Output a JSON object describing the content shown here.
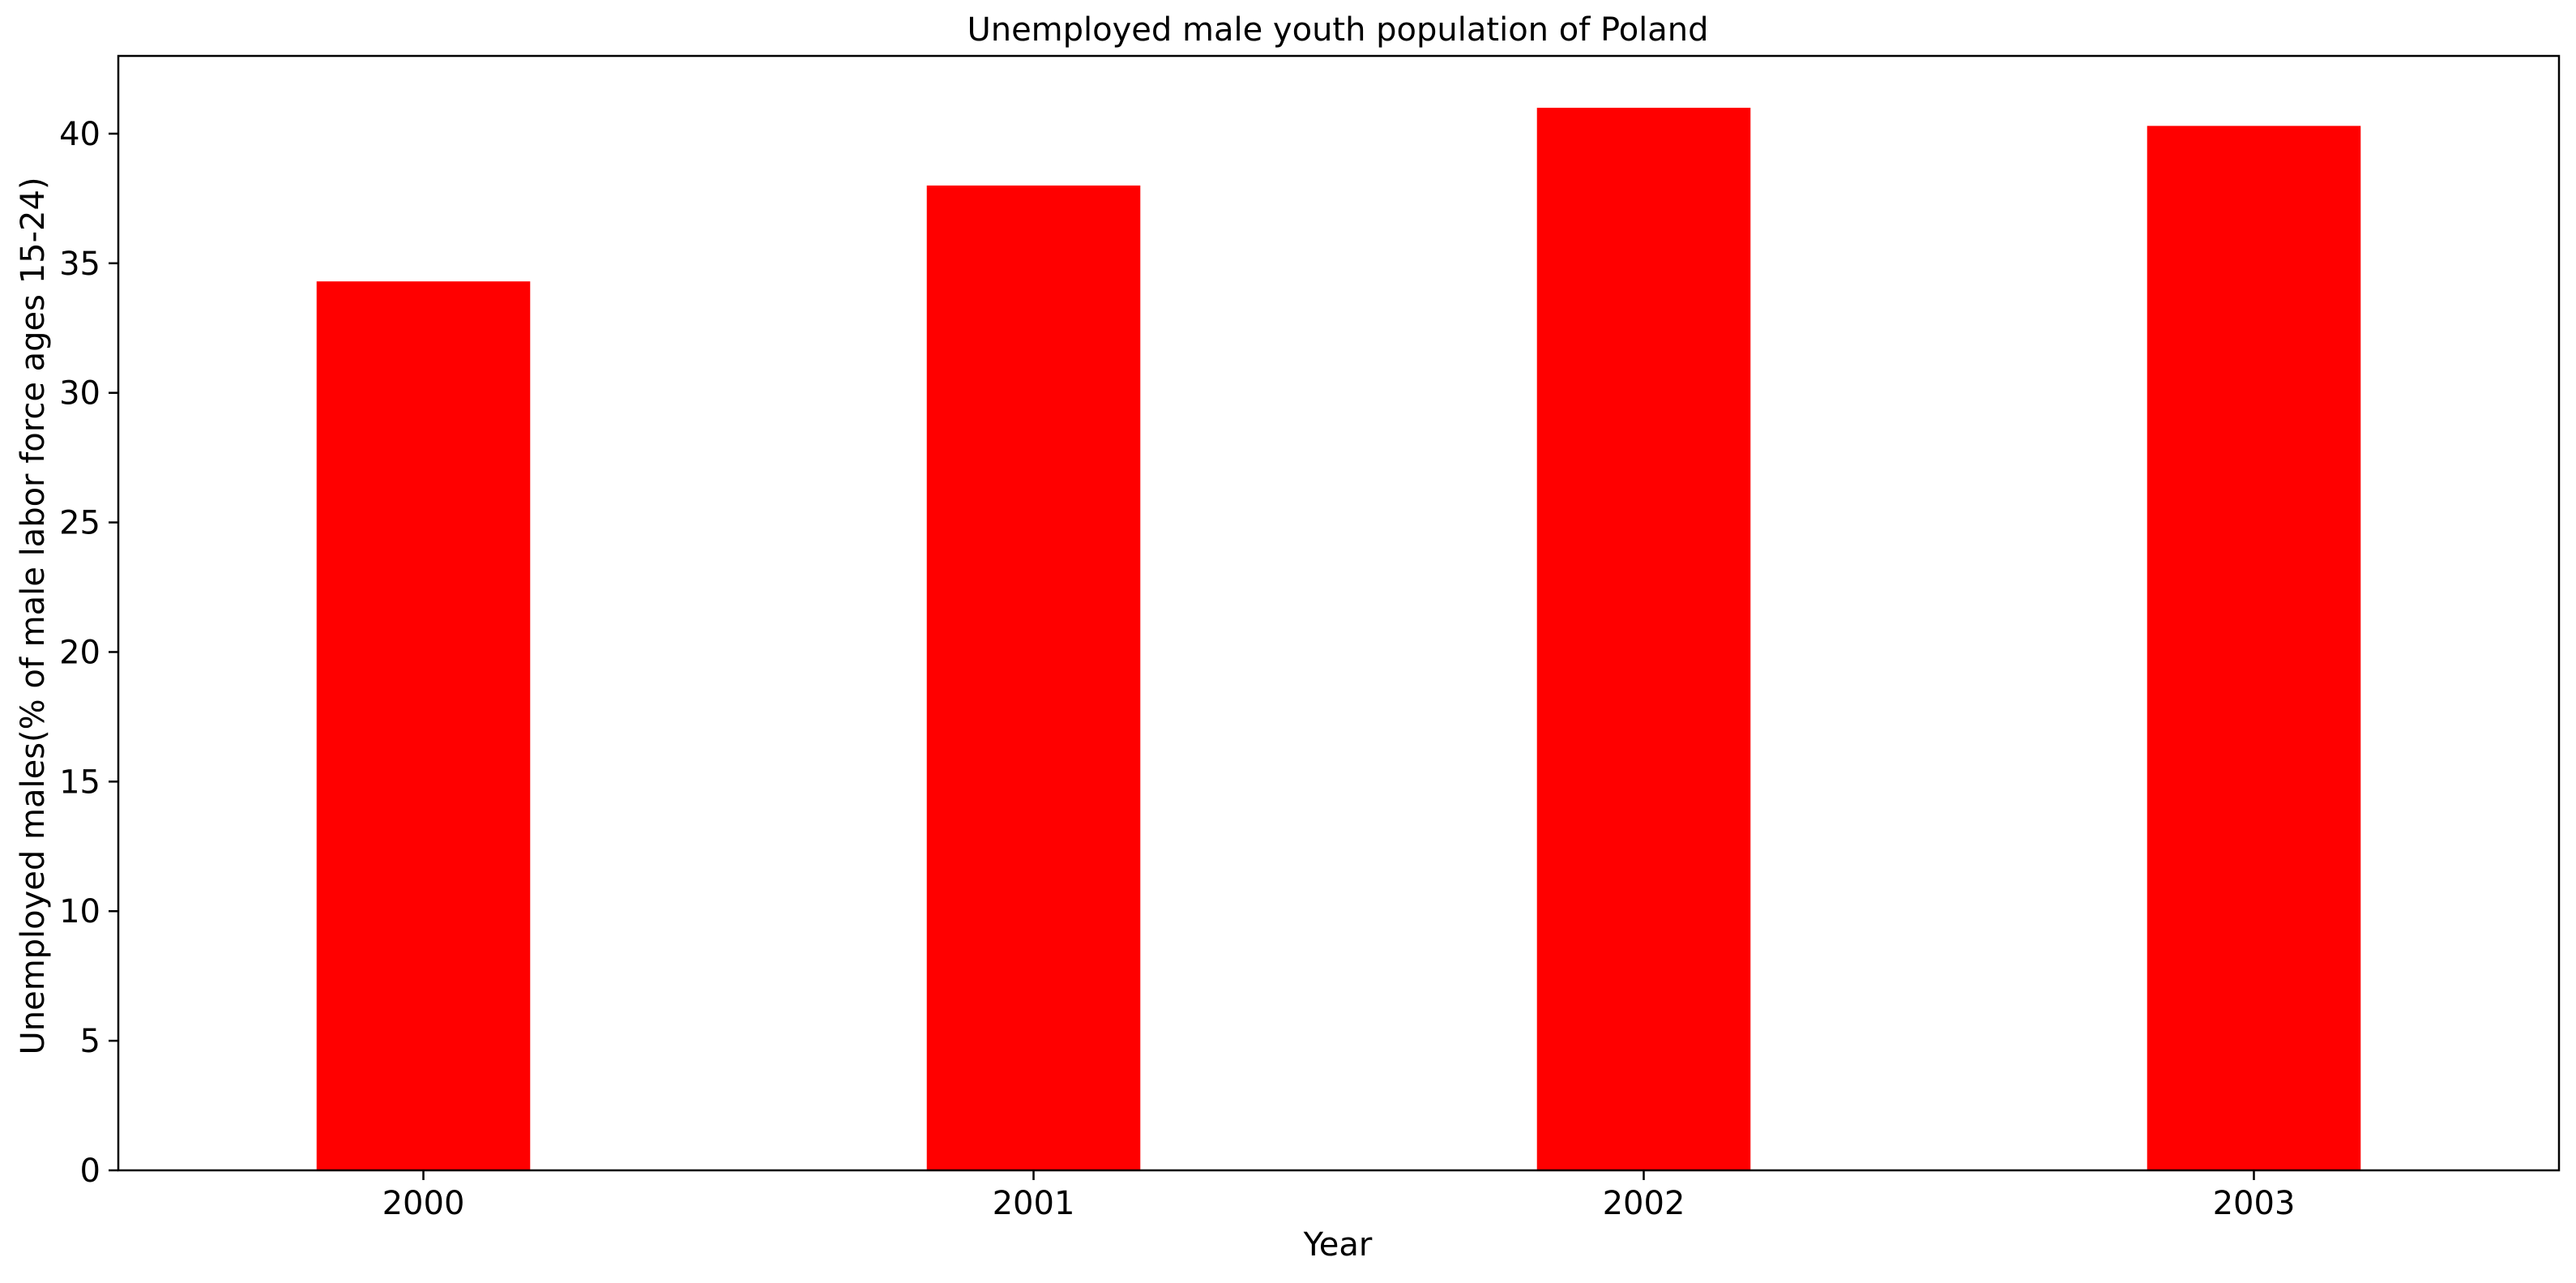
{
  "chart_data": {
    "type": "bar",
    "title": "Unemployed male youth population of Poland",
    "xlabel": "Year",
    "ylabel": "Unemployed males(% of male labor force ages 15-24)",
    "categories": [
      "2000",
      "2001",
      "2002",
      "2003"
    ],
    "values": [
      34.3,
      38.0,
      41.0,
      40.3
    ],
    "ylim": [
      0,
      43
    ],
    "yticks": [
      0,
      5,
      10,
      15,
      20,
      25,
      30,
      35,
      40
    ],
    "ytick_labels": [
      "0",
      "5",
      "10",
      "15",
      "20",
      "25",
      "30",
      "35",
      "40"
    ],
    "grid": false,
    "legend": "none",
    "bar_color": "#ff0000"
  }
}
